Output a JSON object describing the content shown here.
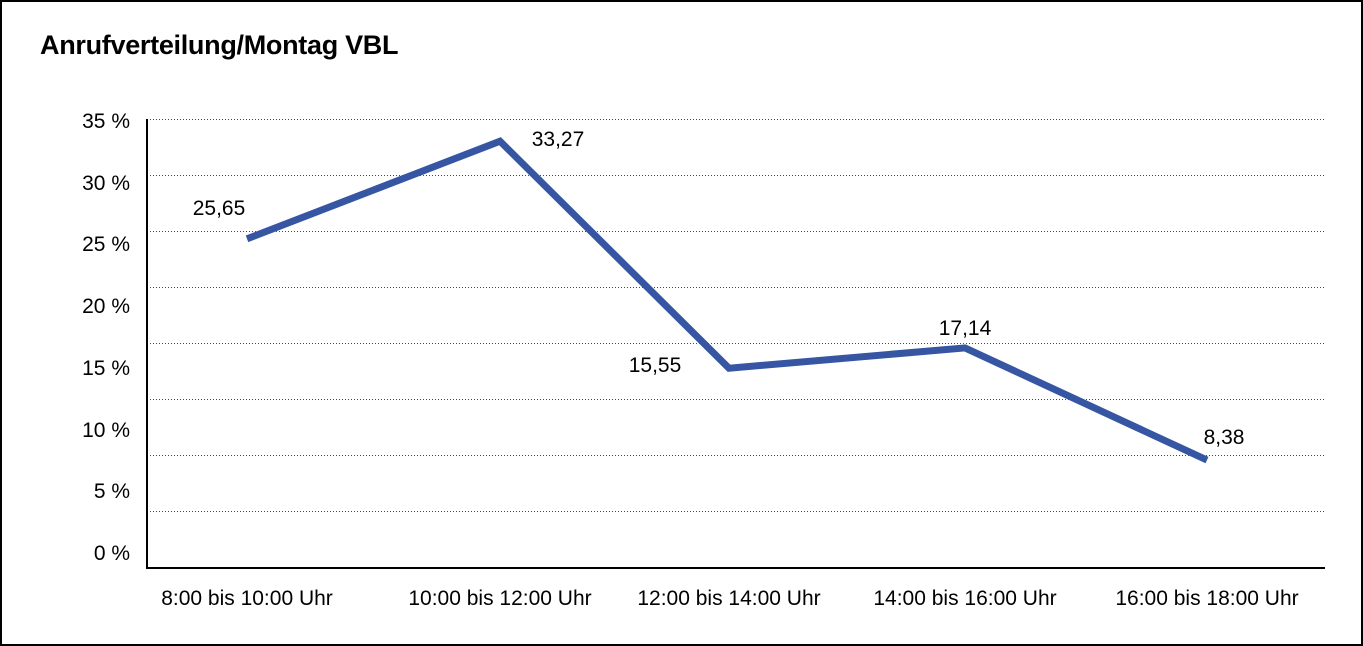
{
  "title": "Anrufverteilung/Montag VBL",
  "chart_data": {
    "type": "line",
    "title": "Anrufverteilung/Montag VBL",
    "categories": [
      "8:00 bis 10:00 Uhr",
      "10:00 bis 12:00 Uhr",
      "12:00 bis 14:00 Uhr",
      "14:00 bis 16:00 Uhr",
      "16:00 bis 18:00 Uhr"
    ],
    "values": [
      25.65,
      33.27,
      15.55,
      17.14,
      8.38
    ],
    "point_labels": [
      "25,65",
      "33,27",
      "15,55",
      "17,14",
      "8,38"
    ],
    "y_tick_labels": [
      "35 %",
      "30 %",
      "25 %",
      "20 %",
      "15 %",
      "10 %",
      "5 %",
      "0 %"
    ],
    "xlabel": "",
    "ylabel": "",
    "ylim": [
      0,
      35
    ],
    "y_tick_step_percent": 5,
    "grid": "horizontal-dotted",
    "legend": "none",
    "line_color": "#3656a3",
    "value_decimal_separator": ","
  }
}
